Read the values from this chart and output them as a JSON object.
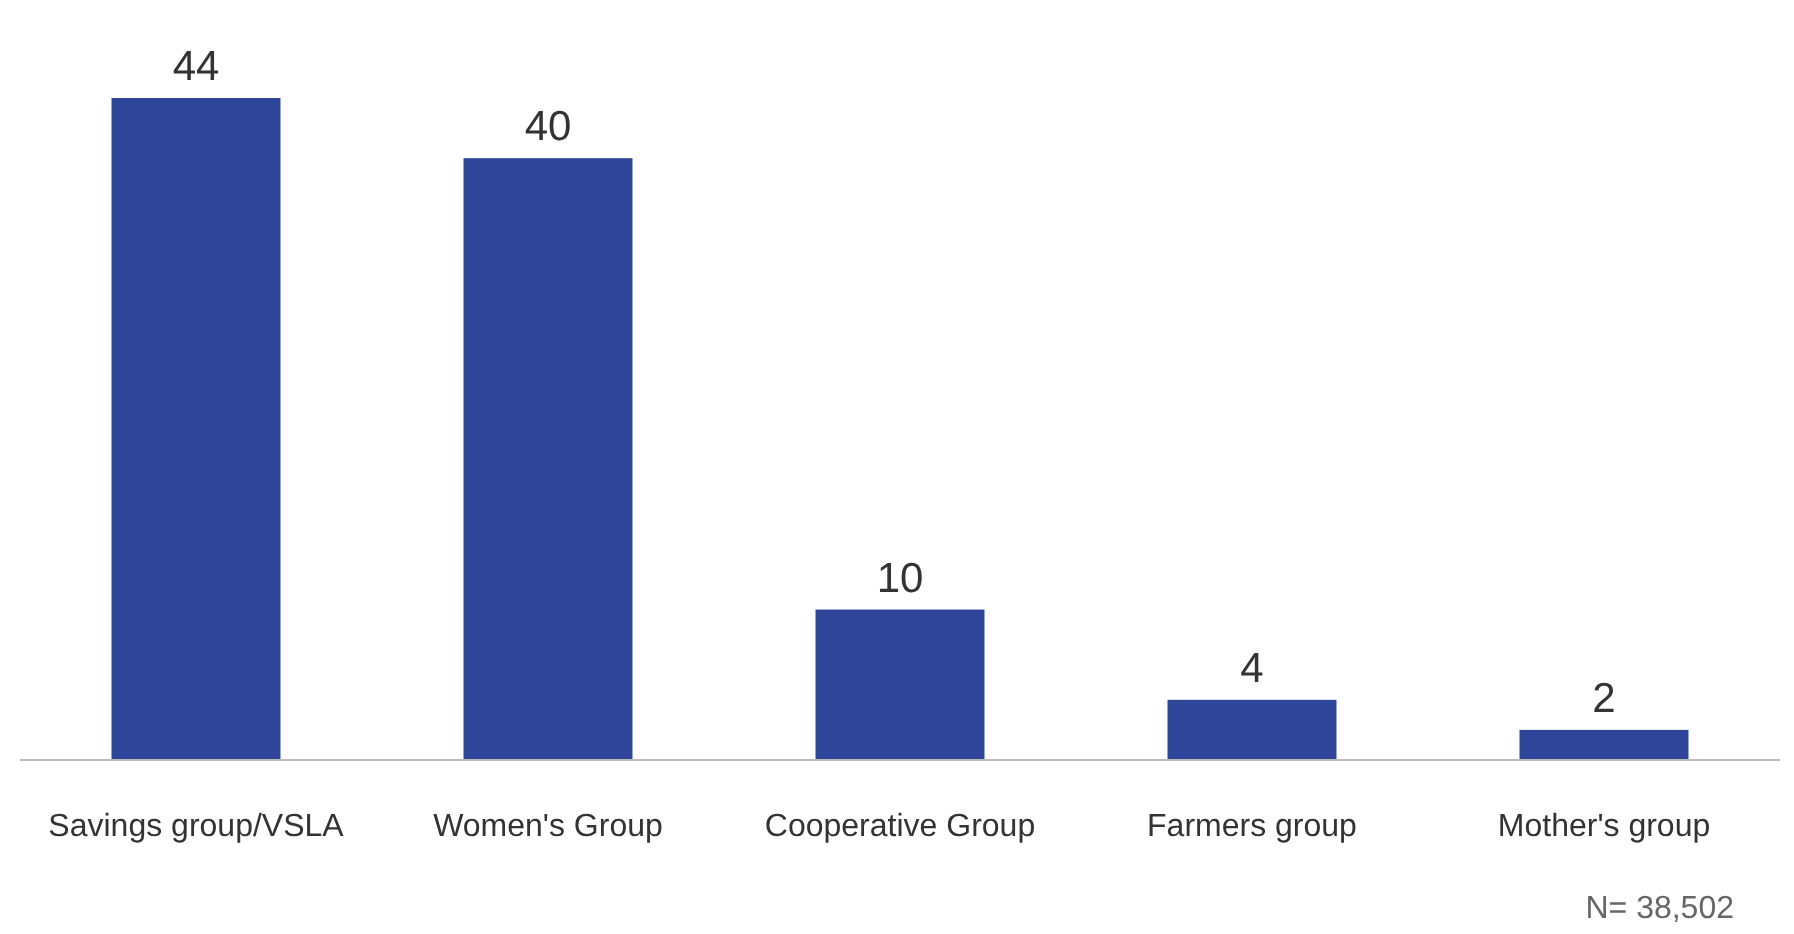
{
  "chart_data": {
    "type": "bar",
    "categories": [
      "Savings group/VSLA",
      "Women's Group",
      "Cooperative Group",
      "Farmers group",
      "Mother's group"
    ],
    "values": [
      44,
      40,
      10,
      4,
      2
    ],
    "color": "#2e4599",
    "data_labels": true,
    "annotations": [
      "N= 38,502"
    ]
  }
}
